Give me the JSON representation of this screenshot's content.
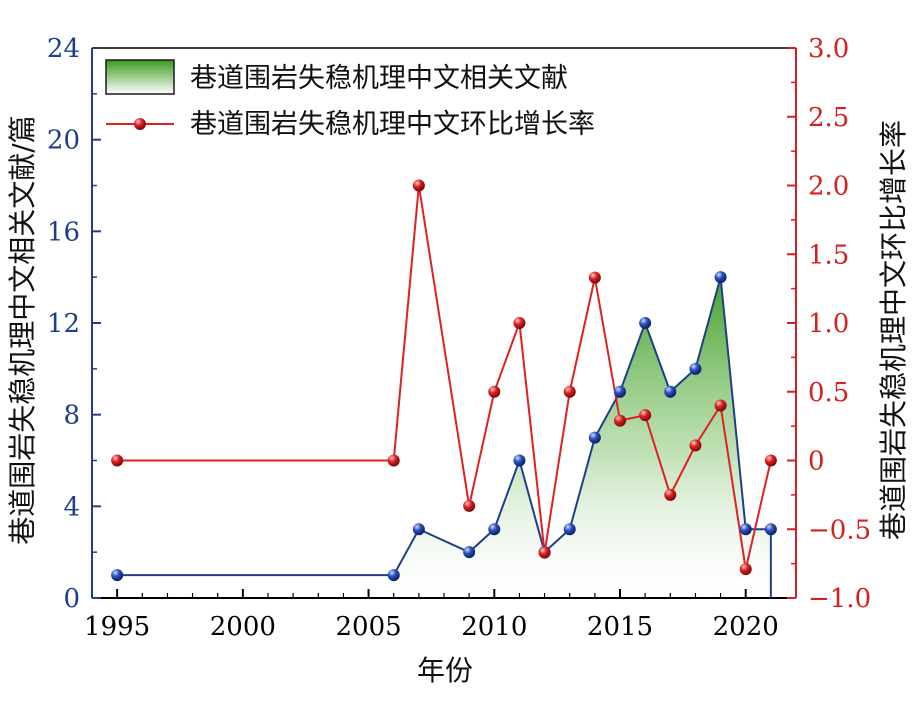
{
  "chart_data": {
    "type": "line",
    "xlabel": "年份",
    "ylabel_left": "巷道围岩失稳机理中文相关文献/篇",
    "ylabel_right": "巷道围岩失稳机理中文环比增长率",
    "x_range": [
      1994,
      2022
    ],
    "x_ticks": [
      1995,
      2000,
      2005,
      2010,
      2015,
      2020
    ],
    "y_left_range": [
      0,
      24
    ],
    "y_left_ticks": [
      0,
      4,
      8,
      12,
      16,
      20,
      24
    ],
    "y_right_range": [
      -1.0,
      3.0
    ],
    "y_right_ticks": [
      "-1.0",
      "-0.5",
      "0",
      "0.5",
      "1.0",
      "1.5",
      "2.0",
      "2.5",
      "3.0"
    ],
    "legend_position": "top-left",
    "series": [
      {
        "name": "巷道围岩失稳机理中文相关文献",
        "axis": "left",
        "style": "area",
        "x": [
          1995,
          2006,
          2007,
          2009,
          2010,
          2011,
          2012,
          2013,
          2014,
          2015,
          2016,
          2017,
          2018,
          2019,
          2020,
          2021
        ],
        "y": [
          1,
          1,
          3,
          2,
          3,
          6,
          2,
          3,
          7,
          9,
          12,
          9,
          10,
          14,
          3,
          3
        ],
        "line_color": "#1d3f8a",
        "marker_color": "#2a4fbf"
      },
      {
        "name": "巷道围岩失稳机理中文环比增长率",
        "axis": "right",
        "style": "line",
        "x": [
          1995,
          2006,
          2007,
          2009,
          2010,
          2011,
          2012,
          2013,
          2014,
          2015,
          2016,
          2017,
          2018,
          2019,
          2020,
          2021
        ],
        "y": [
          0.0,
          0.0,
          2.0,
          -0.33,
          0.5,
          1.0,
          -0.67,
          0.5,
          1.33,
          0.29,
          0.33,
          -0.25,
          0.11,
          0.4,
          -0.79,
          0.0
        ],
        "line_color": "#e02020",
        "marker_color": "#e02020"
      }
    ]
  }
}
